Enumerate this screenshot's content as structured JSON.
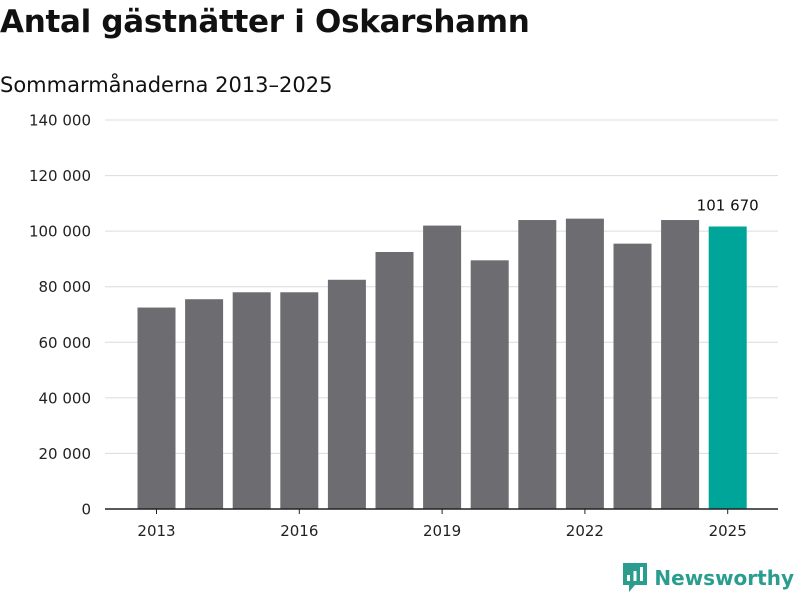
{
  "title": "Antal gästnätter i Oskarshamn",
  "subtitle": "Sommarmånaderna 2013–2025",
  "brand": {
    "name": "Newsworthy",
    "icon": "newsworthy-logo-icon",
    "color": "#2a9d8f"
  },
  "chart_data": {
    "type": "bar",
    "categories": [
      "2013",
      "2014",
      "2015",
      "2016",
      "2017",
      "2018",
      "2019",
      "2020",
      "2021",
      "2022",
      "2023",
      "2024",
      "2025"
    ],
    "values": [
      72500,
      75500,
      78000,
      78000,
      82500,
      92500,
      102000,
      89500,
      104000,
      104500,
      95500,
      104000,
      101670
    ],
    "x_tick_labels": [
      "2013",
      "2016",
      "2019",
      "2022",
      "2025"
    ],
    "y_ticks": [
      0,
      20000,
      40000,
      60000,
      80000,
      100000,
      120000,
      140000
    ],
    "y_tick_labels": [
      "0",
      "20 000",
      "40 000",
      "60 000",
      "80 000",
      "100 000",
      "120 000",
      "140 000"
    ],
    "ylim": [
      0,
      140000
    ],
    "grid": true,
    "bar_color": "#6d6c71",
    "highlight_color": "#00a59a",
    "highlight_category": "2025",
    "annotation": {
      "category": "2025",
      "text": "101 670"
    }
  }
}
